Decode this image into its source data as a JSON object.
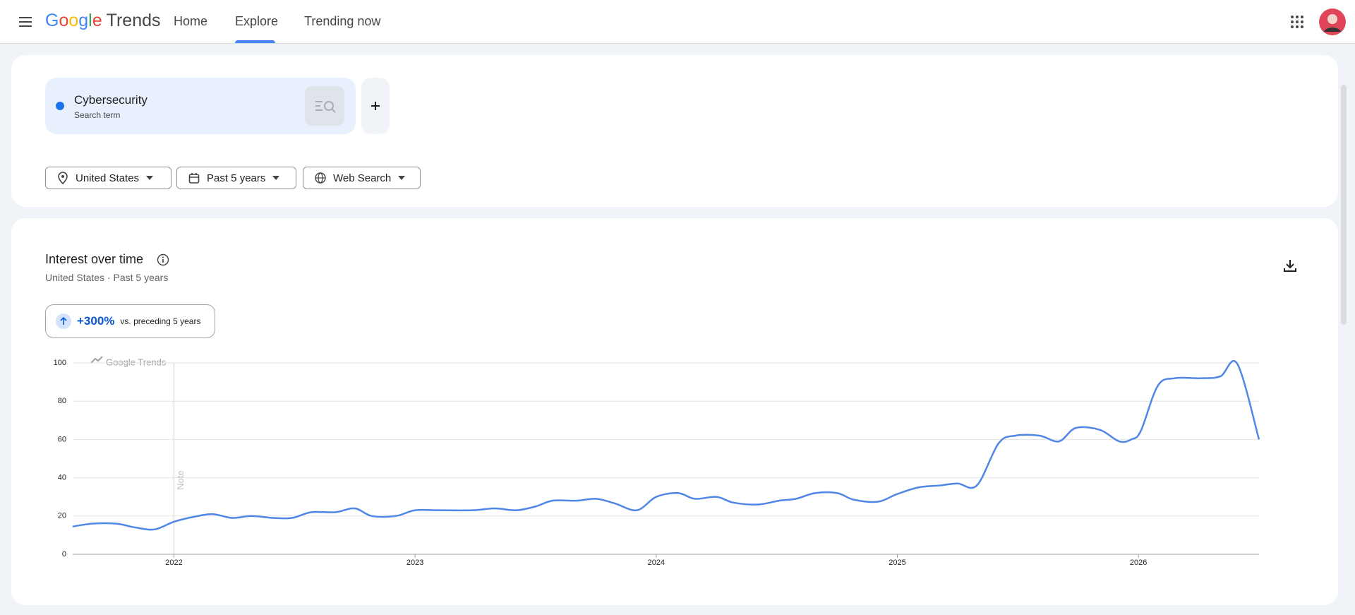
{
  "header": {
    "brand": "Google",
    "product": "Trends",
    "nav": [
      "Home",
      "Explore",
      "Trending now"
    ]
  },
  "search": {
    "term": "Cybersecurity",
    "kind": "Search term"
  },
  "filters": [
    "United States",
    "Past 5 years",
    "Web Search"
  ],
  "section": {
    "title": "Interest over time",
    "region": "United States",
    "period": "Past 5 years",
    "change": "+300%",
    "change_label": "vs. preceding 5 years"
  },
  "chart_data": {
    "type": "line",
    "watermark": "Google Trends",
    "annotation": {
      "label": "Note",
      "x": 2022
    },
    "x": [
      2021.58,
      2021.66,
      2021.76,
      2021.84,
      2021.92,
      2022.0,
      2022.08,
      2022.16,
      2022.24,
      2022.32,
      2022.41,
      2022.49,
      2022.57,
      2022.67,
      2022.75,
      2022.82,
      2022.92,
      2023.0,
      2023.1,
      2023.24,
      2023.33,
      2023.42,
      2023.5,
      2023.57,
      2023.67,
      2023.75,
      2023.83,
      2023.92,
      2024.0,
      2024.09,
      2024.16,
      2024.25,
      2024.32,
      2024.42,
      2024.51,
      2024.58,
      2024.66,
      2024.75,
      2024.82,
      2024.92,
      2025.0,
      2025.09,
      2025.18,
      2025.25,
      2025.33,
      2025.42,
      2025.49,
      2025.59,
      2025.67,
      2025.74,
      2025.84,
      2025.92,
      2025.97,
      2026.01,
      2026.08,
      2026.15,
      2026.26,
      2026.34,
      2026.41,
      2026.5
    ],
    "series": [
      {
        "name": "Cybersecurity",
        "color": "#5086e6",
        "values": [
          14.5,
          16,
          16,
          14,
          13,
          17,
          19.5,
          21,
          19,
          20,
          19,
          19,
          22,
          22,
          24,
          20,
          20,
          23,
          23,
          23,
          24,
          23,
          25,
          28,
          28,
          29,
          26.5,
          23,
          30,
          32,
          29,
          30,
          27,
          26,
          28,
          29,
          32,
          32,
          28.5,
          27.5,
          31.5,
          35,
          36,
          37,
          36,
          58,
          62,
          62,
          59,
          66,
          65,
          59,
          60,
          64.5,
          88,
          92,
          92,
          93,
          99.5,
          60
        ]
      }
    ],
    "xlim": [
      2021.58,
      2026.5
    ],
    "xticks": [
      2022,
      2023,
      2024,
      2025,
      2026
    ],
    "ylim": [
      0,
      100
    ],
    "yticks": [
      0,
      20,
      40,
      60,
      80,
      100
    ],
    "grid": true
  }
}
